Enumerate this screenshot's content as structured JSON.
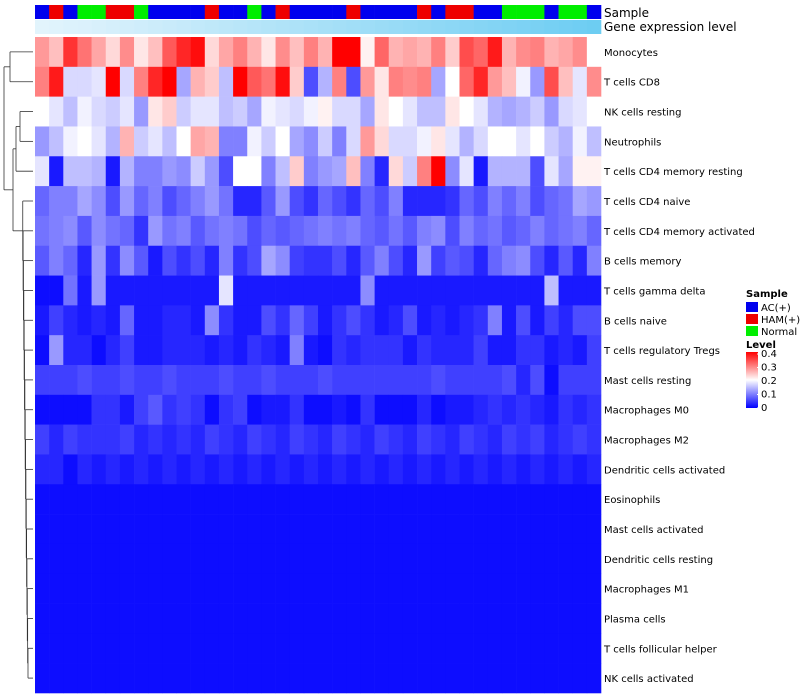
{
  "chart_data": {
    "type": "heatmap",
    "title": "",
    "annotation_tracks": [
      "Sample",
      "Gene expression level"
    ],
    "rows": [
      "Monocytes",
      "T cells CD8",
      "NK cells resting",
      "Neutrophils",
      "T cells CD4 memory resting",
      "T cells CD4 naive",
      "T cells CD4 memory activated",
      "B cells memory",
      "T cells gamma delta",
      "B cells naive",
      "T cells regulatory  Tregs",
      "Mast cells resting",
      "Macrophages M0",
      "Macrophages M2",
      "Dendritic cells activated",
      "Eosinophils",
      "Mast cells activated",
      "Dendritic cells resting",
      "Macrophages M1",
      "Plasma cells",
      "T cells follicular helper",
      "NK cells activated"
    ],
    "sample_groups": [
      "AC",
      "HAM",
      "AC",
      "N",
      "N",
      "HAM",
      "HAM",
      "N",
      "AC",
      "AC",
      "AC",
      "AC",
      "HAM",
      "AC",
      "AC",
      "N",
      "AC",
      "HAM",
      "AC",
      "AC",
      "AC",
      "AC",
      "HAM",
      "AC",
      "AC",
      "AC",
      "AC",
      "HAM",
      "AC",
      "HAM",
      "HAM",
      "AC",
      "AC",
      "N",
      "N",
      "N",
      "AC",
      "N",
      "N",
      "AC"
    ],
    "expression_level": [
      0.05,
      0.07,
      0.09,
      0.1,
      0.12,
      0.14,
      0.16,
      0.18,
      0.2,
      0.22,
      0.24,
      0.26,
      0.28,
      0.3,
      0.32,
      0.34,
      0.36,
      0.38,
      0.4,
      0.42,
      0.44,
      0.46,
      0.48,
      0.5,
      0.52,
      0.54,
      0.56,
      0.58,
      0.6,
      0.62,
      0.64,
      0.66,
      0.68,
      0.7,
      0.72,
      0.74,
      0.76,
      0.78,
      0.8,
      0.82
    ],
    "values": [
      [
        0.28,
        0.25,
        0.36,
        0.31,
        0.27,
        0.23,
        0.29,
        0.22,
        0.25,
        0.33,
        0.37,
        0.39,
        0.23,
        0.27,
        0.3,
        0.26,
        0.22,
        0.29,
        0.25,
        0.3,
        0.26,
        0.4,
        0.4,
        0.21,
        0.32,
        0.26,
        0.27,
        0.26,
        0.3,
        0.24,
        0.34,
        0.32,
        0.38,
        0.26,
        0.29,
        0.3,
        0.26,
        0.27,
        0.29,
        0.2
      ],
      [
        0.3,
        0.38,
        0.17,
        0.17,
        0.18,
        0.4,
        0.17,
        0.3,
        0.37,
        0.4,
        0.13,
        0.26,
        0.24,
        0.15,
        0.4,
        0.33,
        0.31,
        0.39,
        0.24,
        0.06,
        0.14,
        0.3,
        0.06,
        0.28,
        0.22,
        0.3,
        0.29,
        0.3,
        0.13,
        0.2,
        0.32,
        0.37,
        0.28,
        0.25,
        0.19,
        0.12,
        0.34,
        0.25,
        0.18,
        0.29
      ],
      [
        0.2,
        0.18,
        0.15,
        0.19,
        0.17,
        0.16,
        0.18,
        0.12,
        0.22,
        0.24,
        0.16,
        0.18,
        0.18,
        0.15,
        0.16,
        0.13,
        0.19,
        0.18,
        0.17,
        0.19,
        0.21,
        0.17,
        0.17,
        0.13,
        0.22,
        0.2,
        0.18,
        0.15,
        0.15,
        0.22,
        0.2,
        0.18,
        0.14,
        0.13,
        0.14,
        0.16,
        0.12,
        0.17,
        0.18,
        0.2
      ],
      [
        0.12,
        0.15,
        0.19,
        0.2,
        0.18,
        0.14,
        0.26,
        0.16,
        0.18,
        0.15,
        0.2,
        0.27,
        0.26,
        0.1,
        0.1,
        0.19,
        0.16,
        0.2,
        0.13,
        0.11,
        0.16,
        0.1,
        0.17,
        0.28,
        0.23,
        0.17,
        0.17,
        0.19,
        0.22,
        0.18,
        0.14,
        0.17,
        0.2,
        0.2,
        0.18,
        0.2,
        0.16,
        0.14,
        0.19,
        0.15
      ],
      [
        0.18,
        0.02,
        0.15,
        0.15,
        0.14,
        0.02,
        0.14,
        0.1,
        0.1,
        0.12,
        0.11,
        0.16,
        0.12,
        0.06,
        0.2,
        0.2,
        0.1,
        0.15,
        0.24,
        0.1,
        0.12,
        0.13,
        0.25,
        0.1,
        0.03,
        0.23,
        0.16,
        0.3,
        0.4,
        0.11,
        0.18,
        0.02,
        0.14,
        0.14,
        0.14,
        0.06,
        0.18,
        0.13,
        0.21,
        0.21
      ],
      [
        0.08,
        0.1,
        0.1,
        0.13,
        0.11,
        0.06,
        0.12,
        0.08,
        0.1,
        0.06,
        0.08,
        0.1,
        0.12,
        0.09,
        0.03,
        0.03,
        0.07,
        0.12,
        0.06,
        0.04,
        0.08,
        0.06,
        0.04,
        0.08,
        0.06,
        0.1,
        0.03,
        0.03,
        0.03,
        0.04,
        0.08,
        0.06,
        0.1,
        0.08,
        0.1,
        0.06,
        0.08,
        0.09,
        0.13,
        0.12
      ],
      [
        0.09,
        0.1,
        0.11,
        0.07,
        0.11,
        0.09,
        0.08,
        0.04,
        0.12,
        0.09,
        0.1,
        0.07,
        0.09,
        0.1,
        0.09,
        0.06,
        0.08,
        0.07,
        0.08,
        0.09,
        0.1,
        0.09,
        0.1,
        0.08,
        0.07,
        0.09,
        0.07,
        0.1,
        0.11,
        0.06,
        0.1,
        0.08,
        0.09,
        0.07,
        0.08,
        0.1,
        0.08,
        0.09,
        0.1,
        0.08
      ],
      [
        0.07,
        0.1,
        0.08,
        0.03,
        0.12,
        0.04,
        0.11,
        0.07,
        0.02,
        0.06,
        0.04,
        0.06,
        0.03,
        0.1,
        0.04,
        0.06,
        0.13,
        0.11,
        0.05,
        0.04,
        0.04,
        0.06,
        0.03,
        0.07,
        0.1,
        0.06,
        0.03,
        0.12,
        0.05,
        0.07,
        0.06,
        0.03,
        0.08,
        0.1,
        0.11,
        0.06,
        0.03,
        0.07,
        0.03,
        0.1
      ],
      [
        0.01,
        0.01,
        0.09,
        0.02,
        0.12,
        0.02,
        0.02,
        0.02,
        0.02,
        0.02,
        0.02,
        0.02,
        0.02,
        0.18,
        0.02,
        0.02,
        0.02,
        0.02,
        0.02,
        0.02,
        0.02,
        0.02,
        0.02,
        0.11,
        0.02,
        0.02,
        0.02,
        0.02,
        0.02,
        0.02,
        0.02,
        0.02,
        0.02,
        0.02,
        0.02,
        0.02,
        0.15,
        0.02,
        0.02,
        0.02
      ],
      [
        0.02,
        0.05,
        0.03,
        0.02,
        0.03,
        0.02,
        0.08,
        0.02,
        0.02,
        0.03,
        0.03,
        0.02,
        0.11,
        0.04,
        0.02,
        0.02,
        0.06,
        0.04,
        0.08,
        0.05,
        0.02,
        0.04,
        0.06,
        0.04,
        0.02,
        0.03,
        0.06,
        0.02,
        0.03,
        0.02,
        0.03,
        0.04,
        0.1,
        0.02,
        0.06,
        0.02,
        0.05,
        0.03,
        0.06,
        0.06
      ],
      [
        0.01,
        0.12,
        0.03,
        0.03,
        0.01,
        0.03,
        0.05,
        0.02,
        0.02,
        0.03,
        0.03,
        0.03,
        0.02,
        0.03,
        0.02,
        0.04,
        0.03,
        0.02,
        0.1,
        0.02,
        0.01,
        0.04,
        0.03,
        0.04,
        0.04,
        0.04,
        0.02,
        0.04,
        0.03,
        0.03,
        0.03,
        0.05,
        0.02,
        0.02,
        0.04,
        0.04,
        0.02,
        0.03,
        0.02,
        0.05
      ],
      [
        0.05,
        0.05,
        0.05,
        0.06,
        0.05,
        0.05,
        0.06,
        0.05,
        0.05,
        0.06,
        0.05,
        0.05,
        0.05,
        0.06,
        0.05,
        0.05,
        0.06,
        0.05,
        0.05,
        0.05,
        0.06,
        0.05,
        0.05,
        0.05,
        0.05,
        0.05,
        0.05,
        0.05,
        0.06,
        0.05,
        0.05,
        0.05,
        0.05,
        0.06,
        0.03,
        0.06,
        0.01,
        0.05,
        0.05,
        0.05
      ],
      [
        0.01,
        0.01,
        0.01,
        0.01,
        0.04,
        0.04,
        0.02,
        0.05,
        0.07,
        0.04,
        0.05,
        0.04,
        0.01,
        0.04,
        0.05,
        0.01,
        0.02,
        0.02,
        0.04,
        0.01,
        0.01,
        0.02,
        0.01,
        0.04,
        0.01,
        0.01,
        0.01,
        0.03,
        0.01,
        0.02,
        0.02,
        0.03,
        0.04,
        0.03,
        0.04,
        0.03,
        0.02,
        0.04,
        0.03,
        0.04
      ],
      [
        0.05,
        0.03,
        0.05,
        0.04,
        0.04,
        0.04,
        0.05,
        0.03,
        0.04,
        0.03,
        0.04,
        0.03,
        0.05,
        0.04,
        0.03,
        0.05,
        0.04,
        0.03,
        0.05,
        0.04,
        0.03,
        0.05,
        0.04,
        0.03,
        0.05,
        0.04,
        0.03,
        0.05,
        0.04,
        0.03,
        0.05,
        0.04,
        0.03,
        0.05,
        0.04,
        0.05,
        0.03,
        0.04,
        0.05,
        0.04
      ],
      [
        0.03,
        0.03,
        0.01,
        0.03,
        0.02,
        0.03,
        0.02,
        0.03,
        0.02,
        0.03,
        0.02,
        0.03,
        0.02,
        0.03,
        0.02,
        0.03,
        0.02,
        0.03,
        0.02,
        0.03,
        0.02,
        0.03,
        0.02,
        0.03,
        0.02,
        0.03,
        0.02,
        0.03,
        0.02,
        0.03,
        0.02,
        0.03,
        0.02,
        0.03,
        0.02,
        0.03,
        0.02,
        0.03,
        0.02,
        0.03
      ],
      [
        0.01,
        0.01,
        0.01,
        0.01,
        0.01,
        0.01,
        0.01,
        0.01,
        0.01,
        0.01,
        0.01,
        0.01,
        0.01,
        0.01,
        0.01,
        0.01,
        0.01,
        0.01,
        0.01,
        0.01,
        0.01,
        0.01,
        0.01,
        0.01,
        0.01,
        0.01,
        0.01,
        0.01,
        0.01,
        0.01,
        0.01,
        0.01,
        0.01,
        0.01,
        0.01,
        0.01,
        0.01,
        0.01,
        0.01,
        0.01
      ],
      [
        0.01,
        0.01,
        0.01,
        0.01,
        0.01,
        0.01,
        0.01,
        0.01,
        0.01,
        0.01,
        0.01,
        0.01,
        0.01,
        0.01,
        0.01,
        0.01,
        0.01,
        0.01,
        0.01,
        0.01,
        0.01,
        0.01,
        0.01,
        0.01,
        0.01,
        0.01,
        0.01,
        0.01,
        0.01,
        0.01,
        0.01,
        0.01,
        0.01,
        0.01,
        0.01,
        0.01,
        0.01,
        0.01,
        0.01,
        0.01
      ],
      [
        0.01,
        0.01,
        0.01,
        0.01,
        0.01,
        0.01,
        0.01,
        0.01,
        0.01,
        0.01,
        0.01,
        0.01,
        0.01,
        0.01,
        0.01,
        0.01,
        0.01,
        0.01,
        0.01,
        0.01,
        0.01,
        0.01,
        0.01,
        0.01,
        0.01,
        0.01,
        0.01,
        0.01,
        0.01,
        0.01,
        0.01,
        0.01,
        0.01,
        0.01,
        0.01,
        0.01,
        0.01,
        0.01,
        0.01,
        0.01
      ],
      [
        0.01,
        0.01,
        0.01,
        0.01,
        0.01,
        0.01,
        0.01,
        0.01,
        0.01,
        0.01,
        0.01,
        0.01,
        0.01,
        0.01,
        0.01,
        0.01,
        0.01,
        0.01,
        0.01,
        0.01,
        0.01,
        0.01,
        0.01,
        0.01,
        0.01,
        0.01,
        0.01,
        0.01,
        0.01,
        0.01,
        0.01,
        0.01,
        0.01,
        0.01,
        0.01,
        0.01,
        0.01,
        0.01,
        0.01,
        0.01
      ],
      [
        0.01,
        0.01,
        0.01,
        0.01,
        0.01,
        0.01,
        0.01,
        0.01,
        0.01,
        0.01,
        0.01,
        0.01,
        0.01,
        0.01,
        0.01,
        0.01,
        0.01,
        0.01,
        0.01,
        0.01,
        0.01,
        0.01,
        0.01,
        0.01,
        0.01,
        0.01,
        0.01,
        0.01,
        0.01,
        0.01,
        0.01,
        0.01,
        0.01,
        0.01,
        0.01,
        0.01,
        0.01,
        0.01,
        0.01,
        0.01
      ],
      [
        0.01,
        0.01,
        0.01,
        0.01,
        0.01,
        0.01,
        0.01,
        0.01,
        0.01,
        0.01,
        0.01,
        0.01,
        0.01,
        0.01,
        0.01,
        0.01,
        0.01,
        0.01,
        0.01,
        0.01,
        0.01,
        0.01,
        0.01,
        0.01,
        0.01,
        0.01,
        0.01,
        0.01,
        0.01,
        0.01,
        0.01,
        0.01,
        0.01,
        0.01,
        0.01,
        0.01,
        0.01,
        0.01,
        0.01,
        0.01
      ],
      [
        0.01,
        0.01,
        0.01,
        0.01,
        0.01,
        0.01,
        0.01,
        0.01,
        0.01,
        0.01,
        0.01,
        0.01,
        0.01,
        0.01,
        0.01,
        0.01,
        0.01,
        0.01,
        0.01,
        0.01,
        0.01,
        0.01,
        0.01,
        0.01,
        0.01,
        0.01,
        0.01,
        0.01,
        0.01,
        0.01,
        0.01,
        0.01,
        0.01,
        0.01,
        0.01,
        0.01,
        0.01,
        0.01,
        0.01,
        0.01
      ]
    ],
    "legend": {
      "sample_title": "Sample",
      "groups": [
        {
          "key": "AC",
          "label": "AC(+)",
          "color": "#0000ee"
        },
        {
          "key": "HAM",
          "label": "HAM(+)",
          "color": "#ee0000"
        },
        {
          "key": "N",
          "label": "Normal",
          "color": "#00ee00"
        }
      ],
      "level_title": "Level",
      "level_ticks": [
        "0.4",
        "0.3",
        "0.2",
        "0.1",
        "0"
      ],
      "level_range": [
        0,
        0.4
      ]
    },
    "colors": {
      "low": "#0000ff",
      "mid": "#ffffff",
      "high": "#ff0000",
      "expr_low": "#eaf6fd",
      "expr_high": "#52c4f0"
    }
  }
}
